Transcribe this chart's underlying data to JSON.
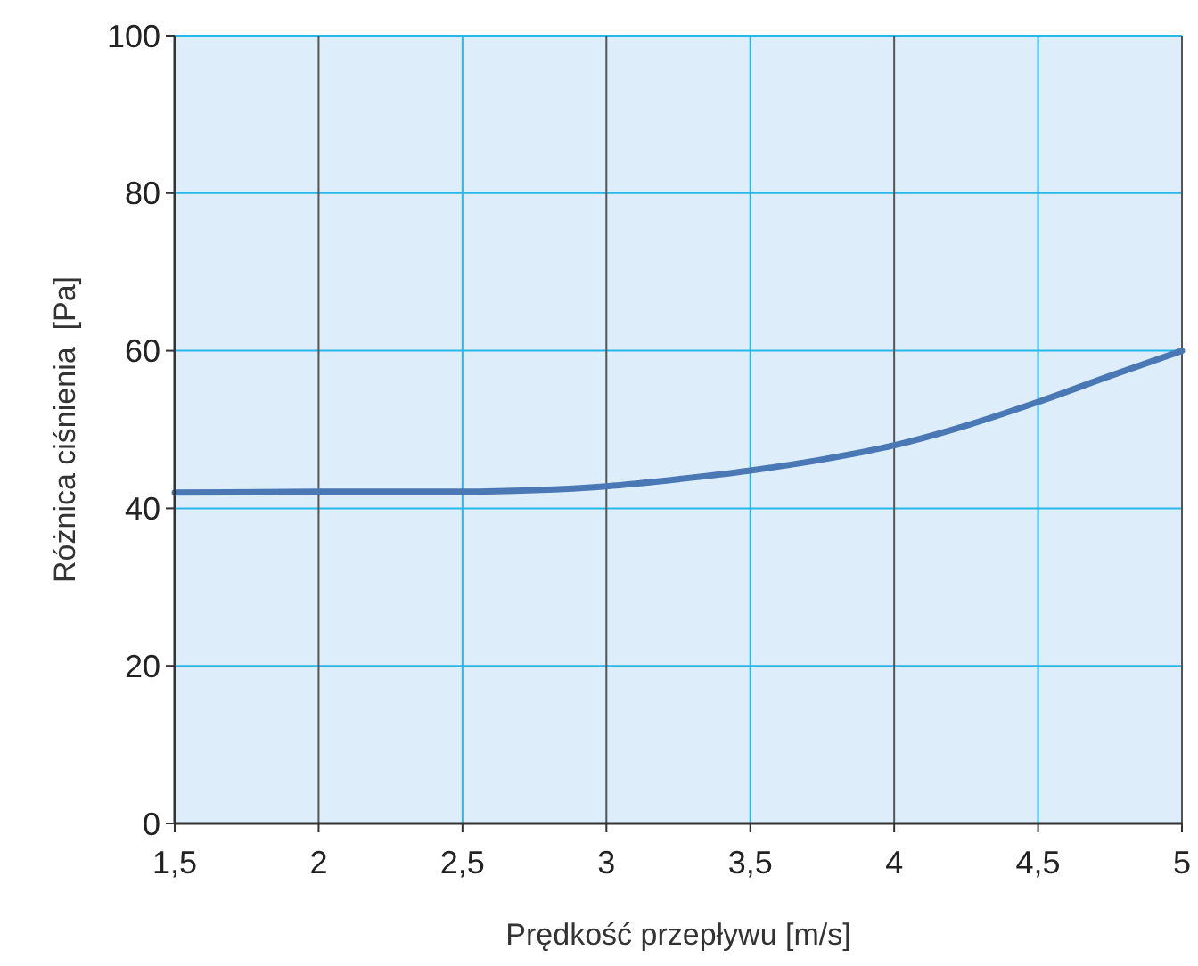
{
  "chart_data": {
    "type": "line",
    "xlabel": "Prędkość przepływu [m/s]",
    "ylabel": "Różnica ciśnienia  [Pa]",
    "x": [
      1.5,
      2,
      2.5,
      2.75,
      3,
      3.25,
      3.5,
      3.75,
      4,
      4.25,
      4.5,
      4.75,
      5
    ],
    "series": [
      {
        "color": "#4a78b5",
        "values": [
          42,
          42.1,
          42.1,
          42.3,
          42.8,
          43.7,
          44.8,
          46.2,
          48,
          50.5,
          53.5,
          56.8,
          60
        ]
      }
    ],
    "xlim": [
      1.5,
      5
    ],
    "xticks": [
      {
        "value": 1.5,
        "label": "1,5"
      },
      2,
      {
        "value": 2.5,
        "label": "2,5"
      },
      3,
      {
        "value": 3.5,
        "label": "3,5"
      },
      4,
      {
        "value": 4.5,
        "label": "4,5"
      },
      5
    ],
    "ylim": [
      0,
      100
    ],
    "yticks": [
      0,
      20,
      40,
      60,
      80,
      100
    ],
    "grid": true,
    "marker": "none",
    "line_style": "solid"
  }
}
